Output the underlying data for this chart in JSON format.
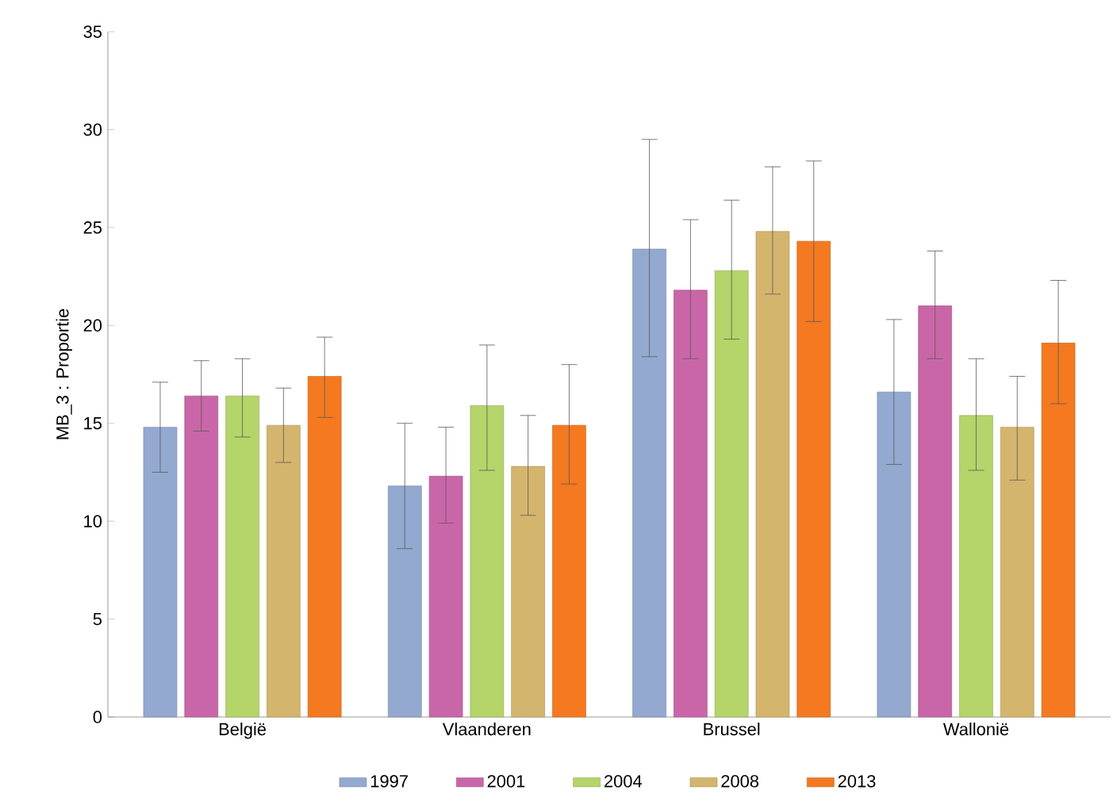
{
  "chart_data": {
    "type": "bar",
    "ylabel": "MB_3 : Proportie",
    "categories": [
      "België",
      "Vlaanderen",
      "Brussel",
      "Wallonië"
    ],
    "series": [
      {
        "name": "1997",
        "color": "#93a9d0",
        "values": [
          14.8,
          11.8,
          23.9,
          16.6
        ],
        "errors": [
          [
            12.5,
            17.1
          ],
          [
            8.6,
            15.0
          ],
          [
            18.4,
            29.5
          ],
          [
            12.9,
            20.3
          ]
        ]
      },
      {
        "name": "2001",
        "color": "#c966a8",
        "values": [
          16.4,
          12.3,
          21.8,
          21.0
        ],
        "errors": [
          [
            14.6,
            18.2
          ],
          [
            9.9,
            14.8
          ],
          [
            18.3,
            25.4
          ],
          [
            18.3,
            23.8
          ]
        ]
      },
      {
        "name": "2004",
        "color": "#b5d46a",
        "values": [
          16.4,
          15.9,
          22.8,
          15.4
        ],
        "errors": [
          [
            14.3,
            18.3
          ],
          [
            12.6,
            19.0
          ],
          [
            19.3,
            26.4
          ],
          [
            12.6,
            18.3
          ]
        ]
      },
      {
        "name": "2008",
        "color": "#d4b56e",
        "values": [
          14.9,
          12.8,
          24.8,
          14.8
        ],
        "errors": [
          [
            13.0,
            16.8
          ],
          [
            10.3,
            15.4
          ],
          [
            21.6,
            28.1
          ],
          [
            12.1,
            17.4
          ]
        ]
      },
      {
        "name": "2013",
        "color": "#f47920",
        "values": [
          17.4,
          14.9,
          24.3,
          19.1
        ],
        "errors": [
          [
            15.3,
            19.4
          ],
          [
            11.9,
            18.0
          ],
          [
            20.2,
            28.4
          ],
          [
            16.0,
            22.3
          ]
        ]
      }
    ],
    "ylim": [
      0,
      35
    ],
    "yticks": [
      0,
      5,
      10,
      15,
      20,
      25,
      30,
      35
    ],
    "legend": "bottom"
  }
}
